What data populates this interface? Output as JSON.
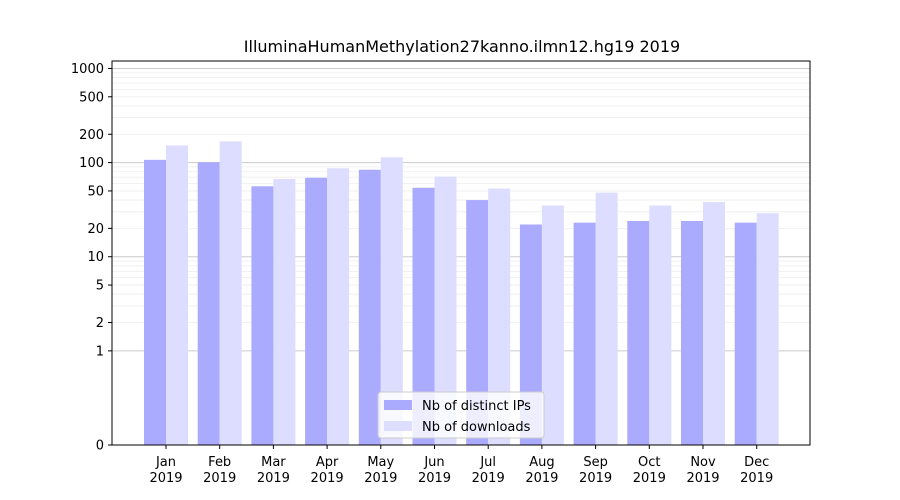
{
  "chart_data": {
    "type": "bar",
    "title": "IlluminaHumanMethylation27kanno.ilmn12.hg19 2019",
    "xlabel": "",
    "ylabel": "",
    "yscale": "symlog",
    "ylim": [
      0,
      1200
    ],
    "ytick_labels": [
      "0",
      "1",
      "2",
      "5",
      "10",
      "20",
      "50",
      "100",
      "200",
      "500",
      "1000"
    ],
    "ytick_values": [
      0,
      1,
      2,
      5,
      10,
      20,
      50,
      100,
      200,
      500,
      1000
    ],
    "categories": [
      {
        "month": "Jan",
        "year": "2019"
      },
      {
        "month": "Feb",
        "year": "2019"
      },
      {
        "month": "Mar",
        "year": "2019"
      },
      {
        "month": "Apr",
        "year": "2019"
      },
      {
        "month": "May",
        "year": "2019"
      },
      {
        "month": "Jun",
        "year": "2019"
      },
      {
        "month": "Jul",
        "year": "2019"
      },
      {
        "month": "Aug",
        "year": "2019"
      },
      {
        "month": "Sep",
        "year": "2019"
      },
      {
        "month": "Oct",
        "year": "2019"
      },
      {
        "month": "Nov",
        "year": "2019"
      },
      {
        "month": "Dec",
        "year": "2019"
      }
    ],
    "series": [
      {
        "name": "Nb of distinct IPs",
        "color": "#aaaaff",
        "values": [
          107,
          101,
          56,
          69,
          84,
          54,
          40,
          22,
          23,
          24,
          24,
          23
        ]
      },
      {
        "name": "Nb of downloads",
        "color": "#ddddff",
        "values": [
          152,
          168,
          67,
          87,
          114,
          71,
          53,
          35,
          48,
          35,
          38,
          29
        ]
      }
    ],
    "legend": "lower-center",
    "grid": true
  }
}
